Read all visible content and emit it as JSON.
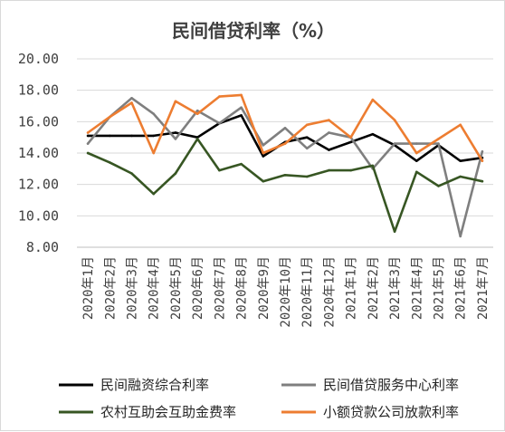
{
  "chart_data": {
    "type": "line",
    "title": "民间借贷利率（%）",
    "xlabel": "",
    "ylabel": "",
    "ylim": [
      8,
      20
    ],
    "yticks": [
      "8.00",
      "10.00",
      "12.00",
      "14.00",
      "16.00",
      "18.00",
      "20.00"
    ],
    "grid": "horizontal",
    "legend_placement": "bottom",
    "categories": [
      "2020年1月",
      "2020年2月",
      "2020年3月",
      "2020年4月",
      "2020年5月",
      "2020年6月",
      "2020年7月",
      "2020年8月",
      "2020年9月",
      "2020年10月",
      "2020年11月",
      "2020年12月",
      "2021年1月",
      "2021年2月",
      "2021年3月",
      "2021年4月",
      "2021年5月",
      "2021年6月",
      "2021年7月"
    ],
    "series": [
      {
        "name": "民间融资综合利率",
        "color": "#000000",
        "values": [
          15.1,
          15.1,
          15.1,
          15.1,
          15.3,
          15.0,
          15.9,
          16.4,
          13.8,
          14.7,
          15.0,
          14.2,
          14.7,
          15.2,
          14.5,
          13.5,
          14.5,
          13.5,
          13.7
        ]
      },
      {
        "name": "民间借贷服务中心利率",
        "color": "#7f7f7f",
        "values": [
          14.6,
          16.3,
          17.5,
          16.5,
          14.9,
          16.7,
          15.9,
          16.9,
          14.5,
          15.6,
          14.3,
          15.3,
          15.0,
          13.0,
          14.6,
          14.6,
          14.6,
          8.7,
          14.1
        ]
      },
      {
        "name": "农村互助会互助金费率",
        "color": "#375623",
        "values": [
          14.0,
          13.4,
          12.7,
          11.4,
          12.7,
          14.9,
          12.9,
          13.3,
          12.2,
          12.6,
          12.5,
          12.9,
          12.9,
          13.2,
          9.0,
          12.8,
          11.9,
          12.5,
          12.2
        ]
      },
      {
        "name": "小额贷款公司放款利率",
        "color": "#ed7d31",
        "values": [
          15.3,
          16.3,
          17.2,
          14.0,
          17.3,
          16.5,
          17.6,
          17.7,
          14.0,
          14.6,
          15.8,
          16.1,
          15.0,
          17.4,
          16.1,
          14.0,
          14.9,
          15.8,
          13.5
        ]
      }
    ]
  }
}
